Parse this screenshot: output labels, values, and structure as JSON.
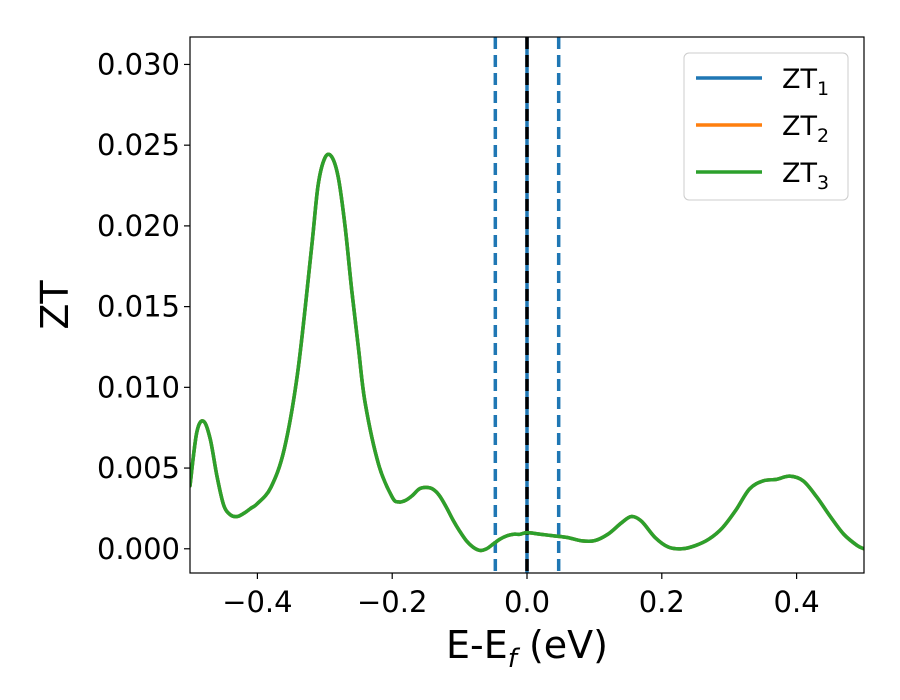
{
  "chart_data": {
    "type": "line",
    "xlabel": "E-E",
    "xlabel_sub": "f",
    "xlabel_unit": " (eV)",
    "ylabel": "ZT",
    "xlim": [
      -0.5,
      0.5
    ],
    "ylim": [
      -0.0015,
      0.0317
    ],
    "xticks": [
      -0.4,
      -0.2,
      0.0,
      0.2,
      0.4
    ],
    "xtick_labels": [
      "−0.4",
      "−0.2",
      "0.0",
      "0.2",
      "0.4"
    ],
    "yticks": [
      0.0,
      0.005,
      0.01,
      0.015,
      0.02,
      0.025,
      0.03
    ],
    "ytick_labels": [
      "0.000",
      "0.005",
      "0.010",
      "0.015",
      "0.020",
      "0.025",
      "0.030"
    ],
    "grid": false,
    "legend_position": "top-right",
    "x": [
      -0.5,
      -0.49,
      -0.48,
      -0.47,
      -0.46,
      -0.45,
      -0.44,
      -0.43,
      -0.42,
      -0.41,
      -0.4,
      -0.38,
      -0.36,
      -0.34,
      -0.32,
      -0.31,
      -0.3,
      -0.29,
      -0.28,
      -0.27,
      -0.26,
      -0.25,
      -0.24,
      -0.22,
      -0.2,
      -0.19,
      -0.18,
      -0.17,
      -0.16,
      -0.15,
      -0.14,
      -0.13,
      -0.12,
      -0.11,
      -0.1,
      -0.09,
      -0.08,
      -0.07,
      -0.06,
      -0.05,
      -0.04,
      -0.03,
      -0.02,
      -0.01,
      0.0,
      0.02,
      0.04,
      0.06,
      0.08,
      0.1,
      0.12,
      0.14,
      0.155,
      0.17,
      0.19,
      0.21,
      0.23,
      0.25,
      0.27,
      0.29,
      0.31,
      0.33,
      0.35,
      0.37,
      0.39,
      0.41,
      0.43,
      0.45,
      0.47,
      0.49,
      0.5
    ],
    "series": [
      {
        "name": "ZT",
        "sub": "1",
        "color": "#1f77b4",
        "y": [
          0.0039,
          0.0072,
          0.0079,
          0.0068,
          0.0045,
          0.0027,
          0.0021,
          0.002,
          0.0022,
          0.0025,
          0.0028,
          0.0038,
          0.0062,
          0.011,
          0.0185,
          0.0225,
          0.0242,
          0.0243,
          0.023,
          0.02,
          0.016,
          0.0124,
          0.009,
          0.0052,
          0.0032,
          0.0029,
          0.003,
          0.0033,
          0.0037,
          0.0038,
          0.0037,
          0.0033,
          0.0026,
          0.0018,
          0.0011,
          0.0005,
          0.0001,
          -0.0001,
          0.0,
          0.0003,
          0.0006,
          0.0008,
          0.0009,
          0.0009,
          0.001,
          0.0009,
          0.0008,
          0.0007,
          0.0005,
          0.0005,
          0.0009,
          0.0016,
          0.002,
          0.0017,
          0.0007,
          0.0001,
          0.0,
          0.0002,
          0.0006,
          0.0013,
          0.0024,
          0.0037,
          0.0042,
          0.0043,
          0.0045,
          0.0042,
          0.0032,
          0.002,
          0.0009,
          0.0002,
          0.0
        ]
      },
      {
        "name": "ZT",
        "sub": "2",
        "color": "#ff7f0e",
        "y": [
          0.0039,
          0.0072,
          0.0079,
          0.0068,
          0.0045,
          0.0027,
          0.0021,
          0.002,
          0.0022,
          0.0025,
          0.0028,
          0.0038,
          0.0062,
          0.011,
          0.0185,
          0.0225,
          0.0242,
          0.0243,
          0.023,
          0.02,
          0.016,
          0.0124,
          0.009,
          0.0052,
          0.0032,
          0.0029,
          0.003,
          0.0033,
          0.0037,
          0.0038,
          0.0037,
          0.0033,
          0.0026,
          0.0018,
          0.0011,
          0.0005,
          0.0001,
          -0.0001,
          0.0,
          0.0003,
          0.0006,
          0.0008,
          0.0009,
          0.0009,
          0.001,
          0.0009,
          0.0008,
          0.0007,
          0.0005,
          0.0005,
          0.0009,
          0.0016,
          0.002,
          0.0017,
          0.0007,
          0.0001,
          0.0,
          0.0002,
          0.0006,
          0.0013,
          0.0024,
          0.0037,
          0.0042,
          0.0043,
          0.0045,
          0.0042,
          0.0032,
          0.002,
          0.0009,
          0.0002,
          0.0
        ]
      },
      {
        "name": "ZT",
        "sub": "3",
        "color": "#2ca02c",
        "y": [
          0.0039,
          0.0072,
          0.0079,
          0.0068,
          0.0045,
          0.0027,
          0.0021,
          0.002,
          0.0022,
          0.0025,
          0.0028,
          0.0038,
          0.0062,
          0.011,
          0.0185,
          0.0225,
          0.0242,
          0.0243,
          0.023,
          0.02,
          0.016,
          0.0124,
          0.009,
          0.0052,
          0.0032,
          0.0029,
          0.003,
          0.0033,
          0.0037,
          0.0038,
          0.0037,
          0.0033,
          0.0026,
          0.0018,
          0.0011,
          0.0005,
          0.0001,
          -0.0001,
          0.0,
          0.0003,
          0.0006,
          0.0008,
          0.0009,
          0.0009,
          0.001,
          0.0009,
          0.0008,
          0.0007,
          0.0005,
          0.0005,
          0.0009,
          0.0016,
          0.002,
          0.0017,
          0.0007,
          0.0001,
          0.0,
          0.0002,
          0.0006,
          0.0013,
          0.0024,
          0.0037,
          0.0042,
          0.0043,
          0.0045,
          0.0042,
          0.0032,
          0.002,
          0.0009,
          0.0002,
          0.0
        ]
      }
    ],
    "vlines": [
      {
        "x": -0.047,
        "style": "dashed",
        "color": "#1f77b4"
      },
      {
        "x": 0.0,
        "style": "solid",
        "color": "#1f77b4"
      },
      {
        "x": 0.0,
        "style": "dashed",
        "color": "#000000"
      },
      {
        "x": 0.047,
        "style": "dashed",
        "color": "#1f77b4"
      }
    ]
  }
}
